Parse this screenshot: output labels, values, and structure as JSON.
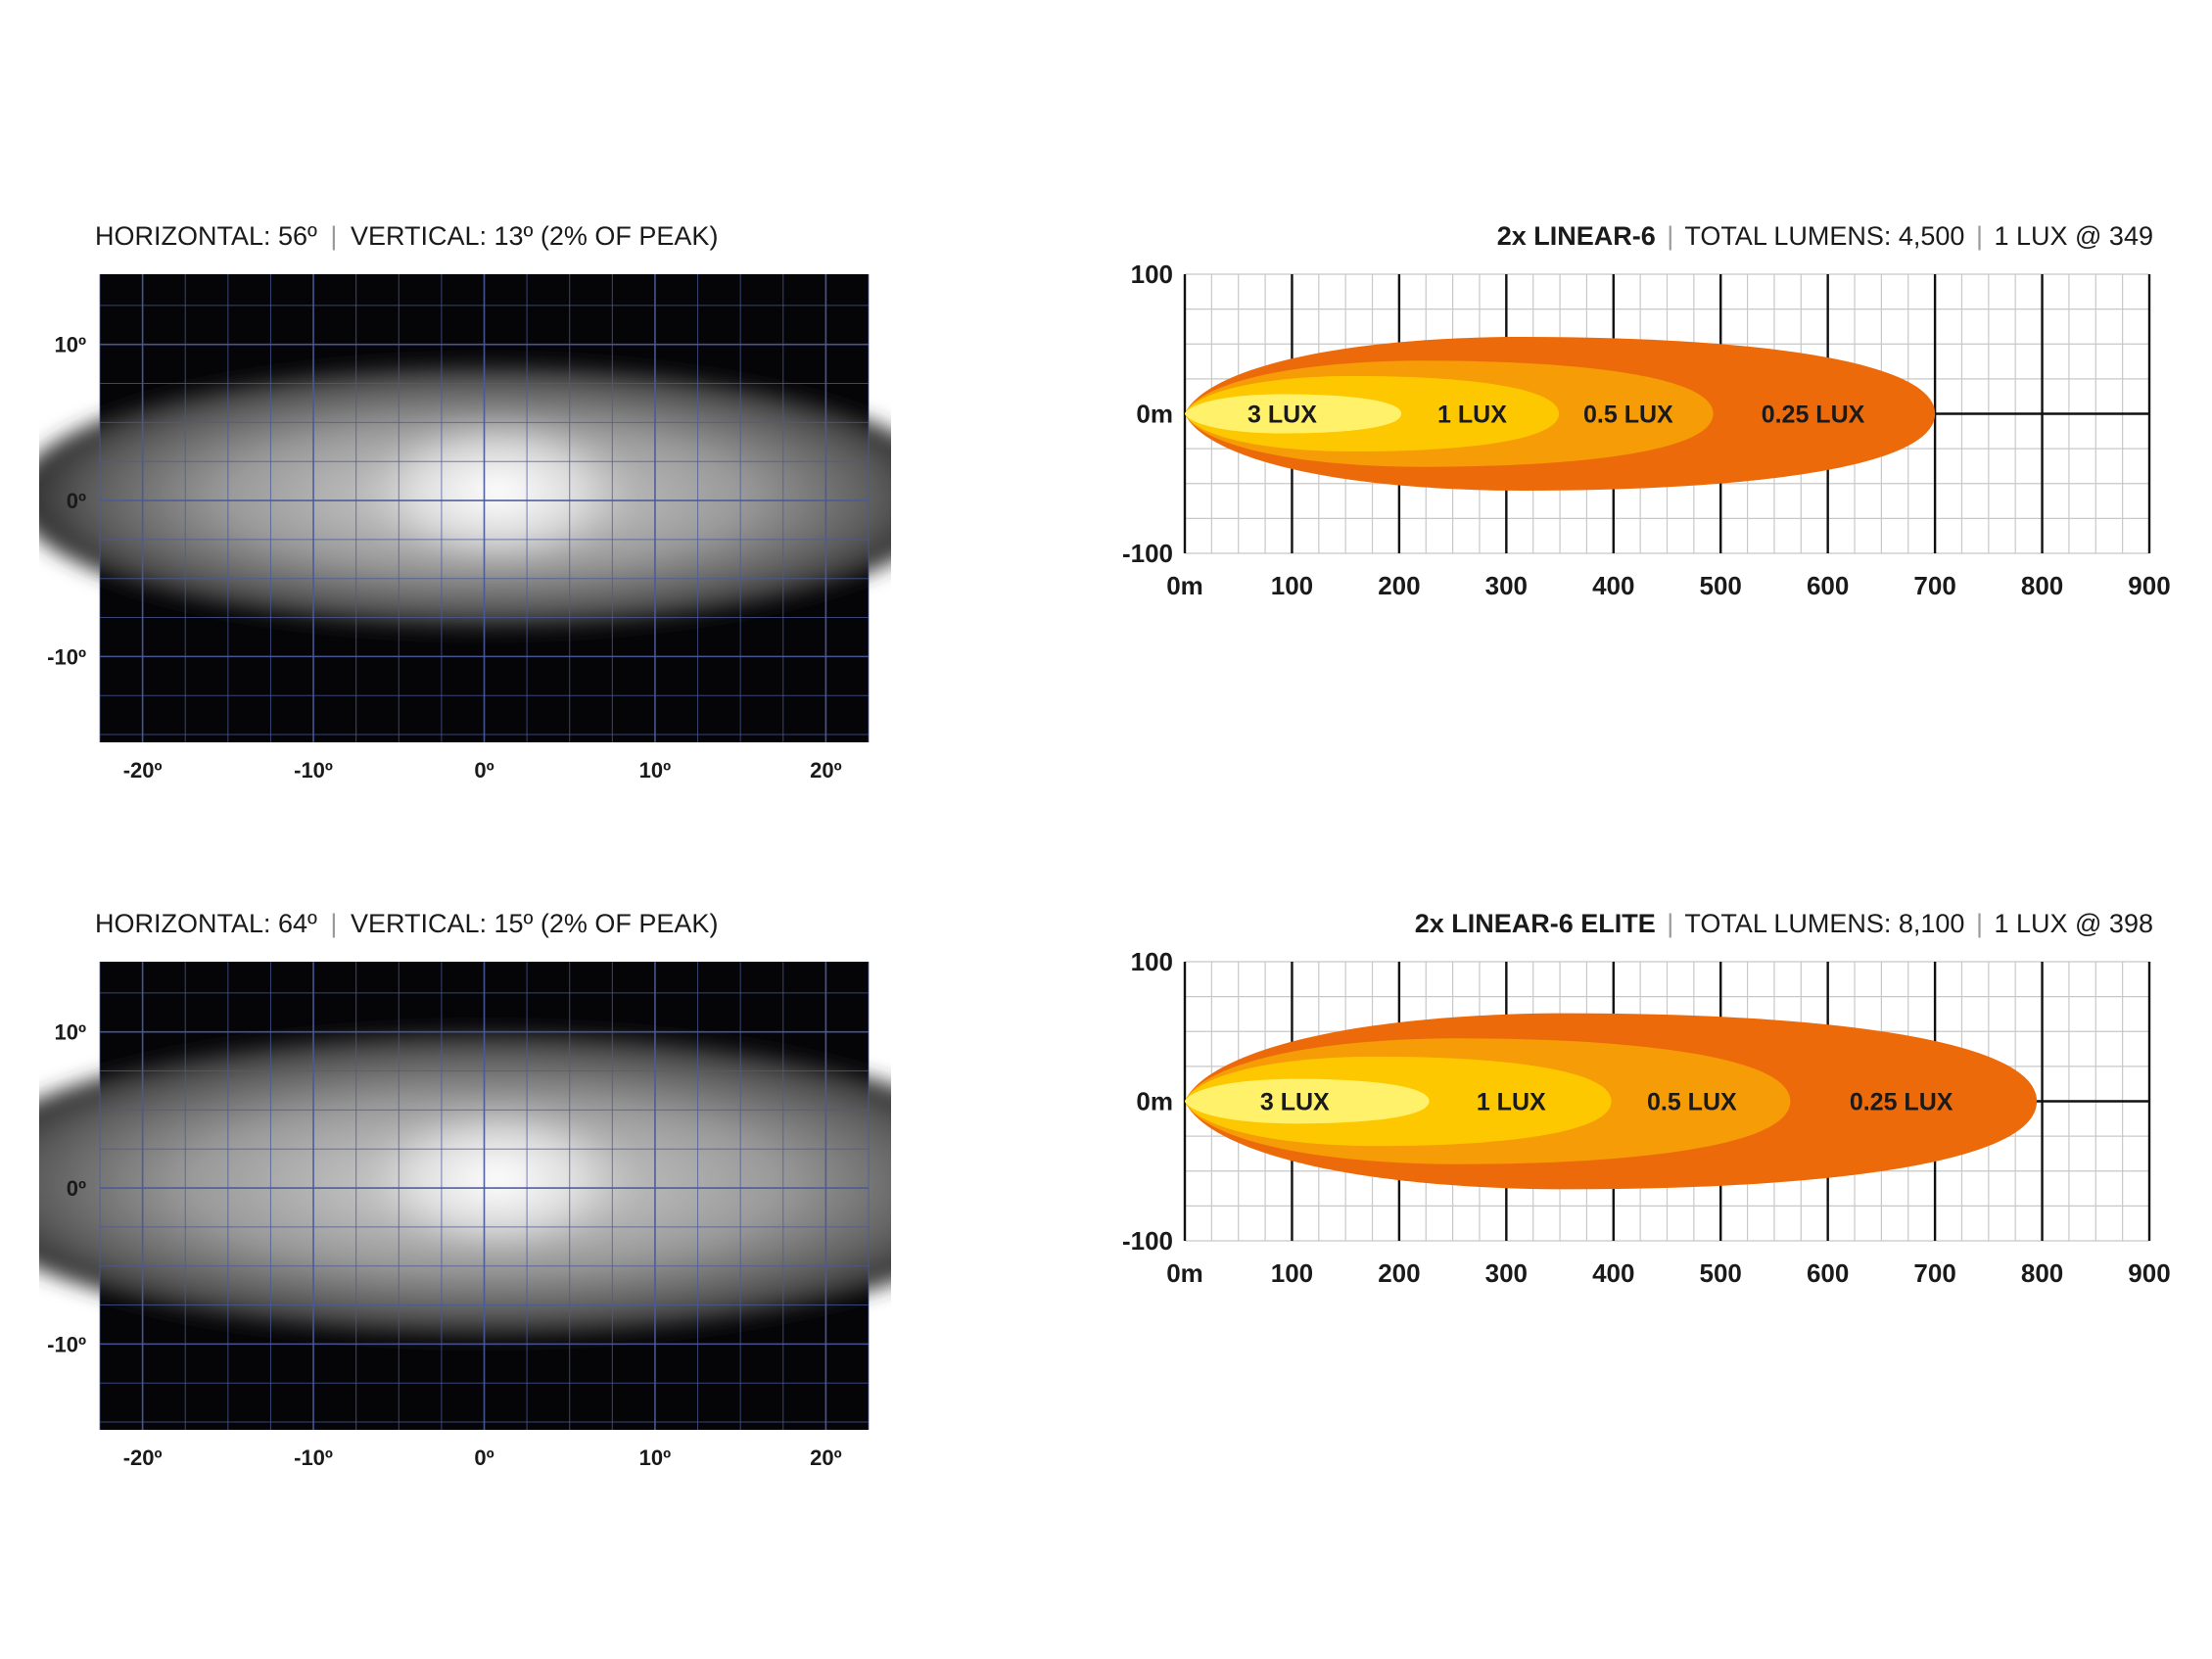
{
  "colors": {
    "background": "#ffffff",
    "beam_plot_bg": "#050508",
    "beam_grid": "#4a5a9a",
    "grid_light": "#c8c8c8",
    "grid_dark": "#111111",
    "lux_3": "#fff26a",
    "lux_1": "#fec800",
    "lux_05": "#f59c06",
    "lux_025": "#ec6a0a",
    "separator": "#9a9a9a",
    "text": "#1a1a1a"
  },
  "panels": [
    {
      "beam_header": {
        "horizontal": "HORIZONTAL: 56º",
        "vertical": "VERTICAL: 13º (2% OF PEAK)"
      },
      "range_header": {
        "model": "2x LINEAR-6",
        "lumens": "TOTAL LUMENS: 4,500",
        "lux_at": "1 LUX @ 349"
      }
    },
    {
      "beam_header": {
        "horizontal": "HORIZONTAL: 64º",
        "vertical": "VERTICAL: 15º (2% OF PEAK)"
      },
      "range_header": {
        "model": "2x LINEAR-6 ELITE",
        "lumens": "TOTAL LUMENS: 8,100",
        "lux_at": "1 LUX @ 398"
      }
    }
  ],
  "chart_data": [
    {
      "type": "heatmap",
      "name_text": "",
      "x_ticks": [
        "-20º",
        "-10º",
        "0º",
        "10º",
        "20º"
      ],
      "y_ticks": [
        "10º",
        "0º",
        "-10º"
      ],
      "xlim": [
        -22.5,
        22.5
      ],
      "ylim": [
        -15.5,
        14.5
      ],
      "beam": {
        "horizontal_deg": 56,
        "vertical_deg": 13
      }
    },
    {
      "type": "area",
      "x_ticks": [
        "0m",
        "100",
        "200",
        "300",
        "400",
        "500",
        "600",
        "700",
        "800",
        "900"
      ],
      "y_ticks": [
        "100",
        "0m",
        "-100"
      ],
      "xlim": [
        0,
        900
      ],
      "ylim": [
        -100,
        100
      ],
      "series": [
        {
          "name": "0.25 LUX",
          "reach_m": 700,
          "max_width_m": 55
        },
        {
          "name": "0.5 LUX",
          "reach_m": 493,
          "max_width_m": 38
        },
        {
          "name": "1 LUX",
          "reach_m": 349,
          "max_width_m": 27
        },
        {
          "name": "3 LUX",
          "reach_m": 202,
          "max_width_m": 14
        }
      ]
    },
    {
      "type": "heatmap",
      "x_ticks": [
        "-20º",
        "-10º",
        "0º",
        "10º",
        "20º"
      ],
      "y_ticks": [
        "10º",
        "0º",
        "-10º"
      ],
      "xlim": [
        -22.5,
        22.5
      ],
      "ylim": [
        -15.5,
        14.5
      ],
      "beam": {
        "horizontal_deg": 64,
        "vertical_deg": 15
      }
    },
    {
      "type": "area",
      "x_ticks": [
        "0m",
        "100",
        "200",
        "300",
        "400",
        "500",
        "600",
        "700",
        "800",
        "900"
      ],
      "y_ticks": [
        "100",
        "0m",
        "-100"
      ],
      "xlim": [
        0,
        900
      ],
      "ylim": [
        -100,
        100
      ],
      "series": [
        {
          "name": "0.25 LUX",
          "reach_m": 795,
          "max_width_m": 63
        },
        {
          "name": "0.5 LUX",
          "reach_m": 565,
          "max_width_m": 45
        },
        {
          "name": "1 LUX",
          "reach_m": 398,
          "max_width_m": 32
        },
        {
          "name": "3 LUX",
          "reach_m": 228,
          "max_width_m": 16
        }
      ]
    }
  ]
}
